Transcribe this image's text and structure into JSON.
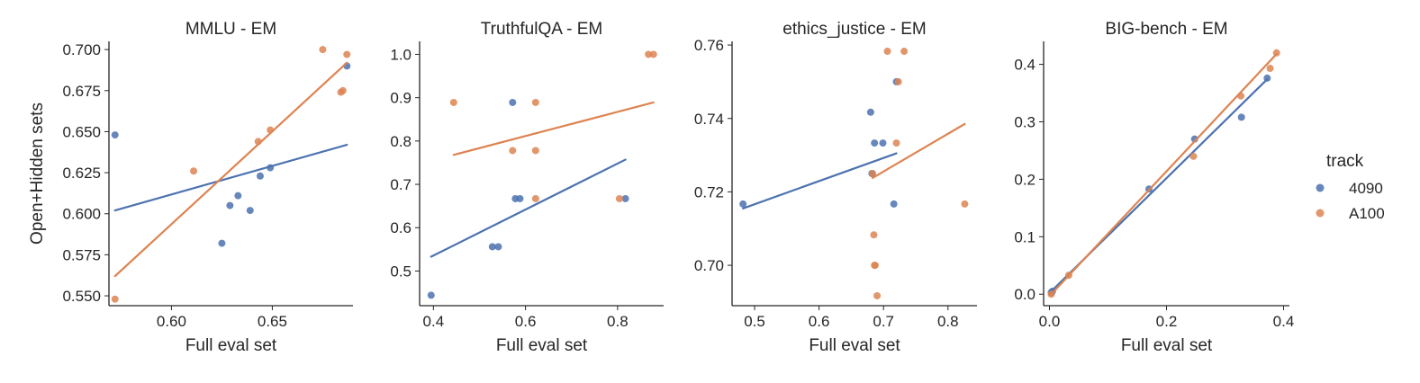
{
  "chart_data": {
    "type": "scatter",
    "figure": {
      "ylabel": "Open+Hidden sets",
      "legend_title": "track",
      "legend_position": "right",
      "series_styles": [
        {
          "name": "4090",
          "color": "#4c72b0"
        },
        {
          "name": "A100",
          "color": "#dd8452"
        }
      ]
    },
    "panels": [
      {
        "title": "MMLU - EM",
        "xlabel": "Full eval set",
        "xlim": [
          0.569,
          0.69
        ],
        "ylim": [
          0.544,
          0.705
        ],
        "xticks": [
          "0.60",
          "0.65"
        ],
        "xtick_values": [
          0.6,
          0.65
        ],
        "yticks": [
          "0.550",
          "0.575",
          "0.600",
          "0.625",
          "0.650",
          "0.675",
          "0.700"
        ],
        "ytick_values": [
          0.55,
          0.575,
          0.6,
          0.625,
          0.65,
          0.675,
          0.7
        ],
        "series": [
          {
            "name": "4090",
            "x": [
              0.572,
              0.625,
              0.629,
              0.633,
              0.639,
              0.644,
              0.649,
              0.687
            ],
            "y": [
              0.648,
              0.582,
              0.605,
              0.611,
              0.602,
              0.623,
              0.628,
              0.69
            ],
            "fit": [
              [
                0.572,
                0.602
              ],
              [
                0.687,
                0.642
              ]
            ]
          },
          {
            "name": "A100",
            "x": [
              0.572,
              0.611,
              0.643,
              0.649,
              0.675,
              0.684,
              0.685,
              0.687
            ],
            "y": [
              0.548,
              0.626,
              0.644,
              0.651,
              0.7,
              0.674,
              0.675,
              0.697
            ],
            "fit": [
              [
                0.572,
                0.562
              ],
              [
                0.687,
                0.692
              ]
            ]
          }
        ]
      },
      {
        "title": "TruthfulQA - EM",
        "xlabel": "Full eval set",
        "xlim": [
          0.37,
          0.9
        ],
        "ylim": [
          0.42,
          1.03
        ],
        "xticks": [
          "0.4",
          "0.6",
          "0.8"
        ],
        "xtick_values": [
          0.4,
          0.6,
          0.8
        ],
        "yticks": [
          "0.5",
          "0.6",
          "0.7",
          "0.8",
          "0.9",
          "1.0"
        ],
        "ytick_values": [
          0.5,
          0.6,
          0.7,
          0.8,
          0.9,
          1.0
        ],
        "series": [
          {
            "name": "4090",
            "x": [
              0.395,
              0.528,
              0.541,
              0.572,
              0.578,
              0.588,
              0.817
            ],
            "y": [
              0.444,
              0.556,
              0.556,
              0.889,
              0.667,
              0.667,
              0.667
            ],
            "fit": [
              [
                0.395,
                0.533
              ],
              [
                0.817,
                0.757
              ]
            ]
          },
          {
            "name": "A100",
            "x": [
              0.444,
              0.572,
              0.622,
              0.622,
              0.622,
              0.804,
              0.867,
              0.878
            ],
            "y": [
              0.889,
              0.778,
              0.889,
              0.778,
              0.667,
              0.667,
              1.0,
              1.0
            ],
            "fit": [
              [
                0.444,
                0.768
              ],
              [
                0.878,
                0.889
              ]
            ]
          }
        ]
      },
      {
        "title": "ethics_justice - EM",
        "xlabel": "Full eval set",
        "xlim": [
          0.465,
          0.845
        ],
        "ylim": [
          0.689,
          0.761
        ],
        "xticks": [
          "0.5",
          "0.6",
          "0.7",
          "0.8"
        ],
        "xtick_values": [
          0.5,
          0.6,
          0.7,
          0.8
        ],
        "yticks": [
          "0.70",
          "0.72",
          "0.74",
          "0.76"
        ],
        "ytick_values": [
          0.7,
          0.72,
          0.74,
          0.76
        ],
        "series": [
          {
            "name": "4090",
            "x": [
              0.482,
              0.68,
              0.682,
              0.686,
              0.699,
              0.716,
              0.72
            ],
            "y": [
              0.7167,
              0.7417,
              0.725,
              0.7333,
              0.7333,
              0.7167,
              0.75
            ],
            "fit": [
              [
                0.482,
                0.7155
              ],
              [
                0.72,
                0.7305
              ]
            ]
          },
          {
            "name": "A100",
            "x": [
              0.683,
              0.685,
              0.686,
              0.687,
              0.69,
              0.706,
              0.72,
              0.723,
              0.732,
              0.826
            ],
            "y": [
              0.725,
              0.7083,
              0.7,
              0.7,
              0.6917,
              0.7583,
              0.7333,
              0.75,
              0.7583,
              0.7167
            ],
            "fit": [
              [
                0.683,
                0.7238
              ],
              [
                0.826,
                0.7385
              ]
            ]
          }
        ]
      },
      {
        "title": "BIG-bench - EM",
        "xlabel": "Full eval set",
        "xlim": [
          -0.01,
          0.41
        ],
        "ylim": [
          -0.02,
          0.44
        ],
        "xticks": [
          "0.0",
          "0.2",
          "0.4"
        ],
        "xtick_values": [
          0.0,
          0.2,
          0.4
        ],
        "yticks": [
          "0.0",
          "0.1",
          "0.2",
          "0.3",
          "0.4"
        ],
        "ytick_values": [
          0.0,
          0.1,
          0.2,
          0.3,
          0.4
        ],
        "series": [
          {
            "name": "4090",
            "x": [
              0.003,
              0.005,
              0.17,
              0.248,
              0.328,
              0.372
            ],
            "y": [
              0.003,
              0.005,
              0.183,
              0.27,
              0.308,
              0.376
            ],
            "fit": [
              [
                0.003,
                0.005
              ],
              [
                0.372,
                0.374
              ]
            ]
          },
          {
            "name": "A100",
            "x": [
              0.003,
              0.033,
              0.246,
              0.327,
              0.377,
              0.388
            ],
            "y": [
              0.0,
              0.033,
              0.24,
              0.345,
              0.393,
              0.42
            ],
            "fit": [
              [
                0.003,
                0.0
              ],
              [
                0.388,
                0.418
              ]
            ]
          }
        ]
      }
    ]
  }
}
